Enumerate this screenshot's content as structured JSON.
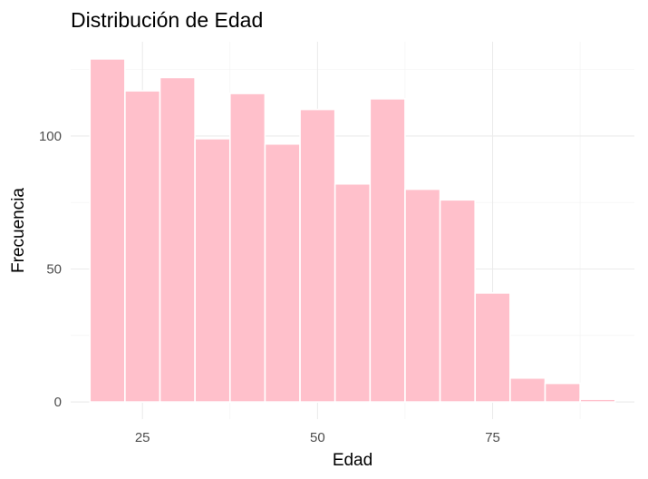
{
  "chart_data": {
    "type": "bar",
    "title": "Distribución de Edad",
    "xlabel": "Edad",
    "ylabel": "Frecuencia",
    "bin_width": 5,
    "bins": [
      {
        "start": 17.5,
        "end": 22.5,
        "count": 129
      },
      {
        "start": 22.5,
        "end": 27.5,
        "count": 117
      },
      {
        "start": 27.5,
        "end": 32.5,
        "count": 122
      },
      {
        "start": 32.5,
        "end": 37.5,
        "count": 99
      },
      {
        "start": 37.5,
        "end": 42.5,
        "count": 116
      },
      {
        "start": 42.5,
        "end": 47.5,
        "count": 97
      },
      {
        "start": 47.5,
        "end": 52.5,
        "count": 110
      },
      {
        "start": 52.5,
        "end": 57.5,
        "count": 82
      },
      {
        "start": 57.5,
        "end": 62.5,
        "count": 114
      },
      {
        "start": 62.5,
        "end": 67.5,
        "count": 80
      },
      {
        "start": 67.5,
        "end": 72.5,
        "count": 76
      },
      {
        "start": 72.5,
        "end": 77.5,
        "count": 41
      },
      {
        "start": 77.5,
        "end": 82.5,
        "count": 9
      },
      {
        "start": 82.5,
        "end": 87.5,
        "count": 7
      },
      {
        "start": 87.5,
        "end": 92.5,
        "count": 1
      }
    ],
    "x_ticks": [
      25,
      50,
      75
    ],
    "x_tick_labels": [
      "25",
      "50",
      "75"
    ],
    "y_ticks": [
      0,
      50,
      100
    ],
    "y_tick_labels": [
      "0",
      "50",
      "100"
    ],
    "xlim": [
      14.75,
      95.25
    ],
    "ylim": [
      -6.45,
      135.45
    ],
    "grid": true,
    "legend": "none",
    "colors": {
      "bar_fill": "#ffc0cb",
      "bar_stroke": "#ffffff",
      "grid_major": "#ebebeb",
      "grid_minor": "#f2f2f2",
      "tick_text": "#4d4d4d"
    }
  }
}
